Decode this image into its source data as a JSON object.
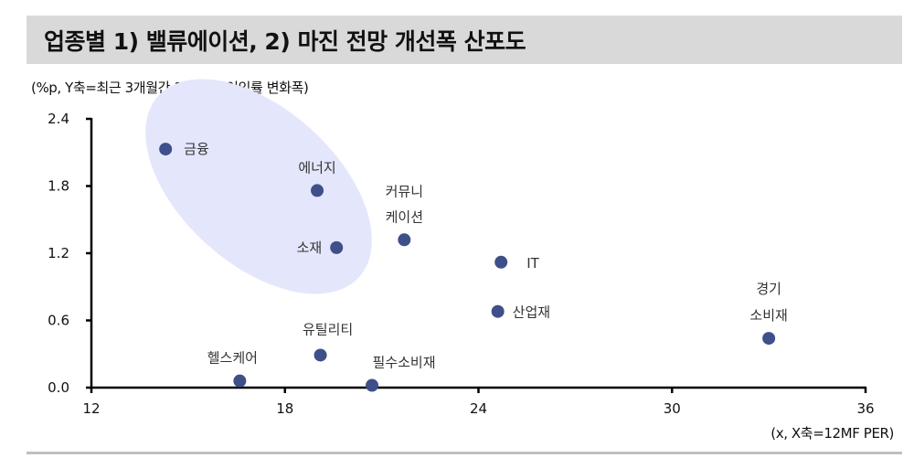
{
  "title": "업종별 1) 밸류에이션, 2) 마진 전망 개선폭 산포도",
  "y_unit_label": "(%p, Y축=최근 3개월간 12MF 순이익률 변화폭)",
  "x_unit_label": "(x, X축=12MF PER)",
  "colors": {
    "point": "#3f4f8a",
    "highlight_ellipse": "#e4e7fb",
    "title_bar": "#d9d9d9",
    "axis": "#000000"
  },
  "chart_data": {
    "type": "scatter",
    "title": "업종별 1) 밸류에이션, 2) 마진 전망 개선폭 산포도",
    "xlabel": "(x, X축=12MF PER)",
    "ylabel": "(%p, Y축=최근 3개월간 12MF 순이익률 변화폭)",
    "xlim": [
      12,
      36
    ],
    "ylim": [
      0.0,
      2.4
    ],
    "x_ticks": [
      "12",
      "18",
      "24",
      "30",
      "36"
    ],
    "y_ticks": [
      "0.0",
      "0.6",
      "1.2",
      "1.8",
      "2.4"
    ],
    "grid": false,
    "legend": null,
    "points": [
      {
        "label": "금융",
        "x": 14.3,
        "y": 2.13
      },
      {
        "label": "에너지",
        "x": 19.0,
        "y": 1.76
      },
      {
        "label": "소재",
        "x": 19.6,
        "y": 1.25
      },
      {
        "label": "커뮤니케이션",
        "label_lines": [
          "커뮤니",
          "케이션"
        ],
        "x": 21.7,
        "y": 1.32
      },
      {
        "label": "IT",
        "x": 24.7,
        "y": 1.12
      },
      {
        "label": "산업재",
        "x": 24.6,
        "y": 0.68
      },
      {
        "label": "경기소비재",
        "label_lines": [
          "경기",
          "소비재"
        ],
        "x": 33.0,
        "y": 0.44
      },
      {
        "label": "유틸리티",
        "x": 19.1,
        "y": 0.29
      },
      {
        "label": "헬스케어",
        "x": 16.6,
        "y": 0.06
      },
      {
        "label": "필수소비재",
        "x": 20.7,
        "y": 0.02
      }
    ],
    "annotations": [
      {
        "type": "ellipse-highlight",
        "covers": [
          "금융",
          "에너지",
          "소재"
        ]
      }
    ]
  }
}
